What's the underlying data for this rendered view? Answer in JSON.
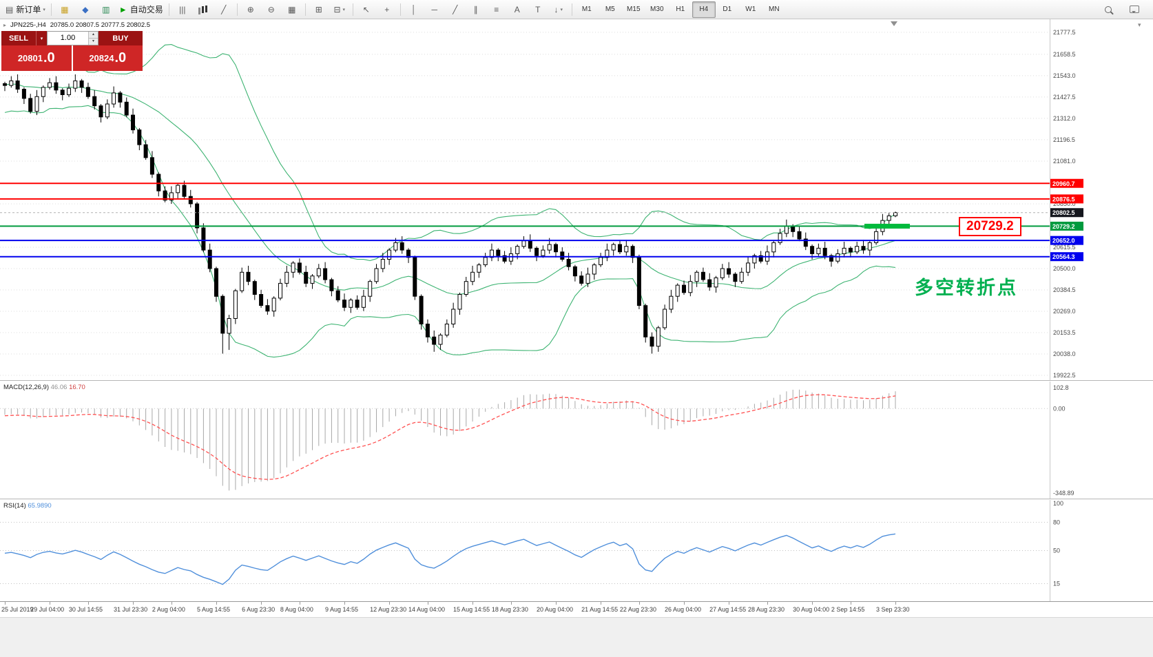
{
  "toolbar": {
    "groups": [
      {
        "items": [
          {
            "name": "new-order-button",
            "label": "新订单",
            "icon": "ticket",
            "dropdown": true
          }
        ]
      },
      {
        "items": [
          {
            "name": "market-watch-button",
            "icon": "market",
            "color": "#c9a227"
          },
          {
            "name": "navigator-button",
            "icon": "navigator",
            "color": "#3a6fc4"
          },
          {
            "name": "terminal-button",
            "icon": "terminal",
            "color": "#2e8b57"
          },
          {
            "name": "autotrading-button",
            "label": "自动交易",
            "icon": "play",
            "color": "#00a000"
          }
        ]
      },
      {
        "items": [
          {
            "name": "bar-chart-button",
            "icon": "bars"
          },
          {
            "name": "candle-chart-button",
            "icon": "candles"
          },
          {
            "name": "line-chart-button",
            "icon": "line"
          }
        ]
      },
      {
        "items": [
          {
            "name": "zoom-in-button",
            "icon": "zoomin"
          },
          {
            "name": "zoom-out-button",
            "icon": "zoomout"
          },
          {
            "name": "grid-button",
            "icon": "grid"
          }
        ]
      },
      {
        "items": [
          {
            "name": "tile-windows-button",
            "icon": "tile"
          },
          {
            "name": "new-chart-button",
            "icon": "win",
            "dropdown": true
          }
        ]
      },
      {
        "items": [
          {
            "name": "cursor-button",
            "icon": "cursor"
          },
          {
            "name": "crosshair-button",
            "icon": "cross"
          }
        ]
      },
      {
        "items": [
          {
            "name": "vertical-line-button",
            "icon": "vline"
          },
          {
            "name": "horizontal-line-button",
            "icon": "hline"
          },
          {
            "name": "trendline-button",
            "icon": "trend"
          },
          {
            "name": "channel-button",
            "icon": "channel"
          },
          {
            "name": "fibonacci-button",
            "icon": "fibo"
          },
          {
            "name": "text-button",
            "icon": "text"
          },
          {
            "name": "text-label-button",
            "icon": "label"
          },
          {
            "name": "arrows-button",
            "icon": "arrows",
            "dropdown": true
          }
        ]
      },
      {
        "items": [
          {
            "name": "timeframe-m1-button",
            "label": "M1",
            "tf": true
          },
          {
            "name": "timeframe-m5-button",
            "label": "M5",
            "tf": true
          },
          {
            "name": "timeframe-m15-button",
            "label": "M15",
            "tf": true
          },
          {
            "name": "timeframe-m30-button",
            "label": "M30",
            "tf": true
          },
          {
            "name": "timeframe-h1-button",
            "label": "H1",
            "tf": true
          },
          {
            "name": "timeframe-h4-button",
            "label": "H4",
            "tf": true,
            "active": true
          },
          {
            "name": "timeframe-d1-button",
            "label": "D1",
            "tf": true
          },
          {
            "name": "timeframe-w1-button",
            "label": "W1",
            "tf": true
          },
          {
            "name": "timeframe-mn-button",
            "label": "MN",
            "tf": true
          }
        ]
      }
    ],
    "right_items": [
      {
        "name": "search-button",
        "icon": "search"
      },
      {
        "name": "chat-button",
        "icon": "chat"
      }
    ]
  },
  "symbol_info": {
    "title": "JPN225-,H4",
    "ohlc": "20785.0 20807.5 20777.5 20802.5"
  },
  "trade_panel": {
    "sell_label": "SELL",
    "buy_label": "BUY",
    "volume": "1.00",
    "sell_price": "20801.0",
    "buy_price": "20824.0"
  },
  "annotations": {
    "price_label": "20729.2",
    "cn_text": "多空转折点"
  },
  "chart_data": {
    "type": "candlestick",
    "symbol": "JPN225-",
    "timeframe": "H4",
    "current_price": 20802.5,
    "price_axis": {
      "top": 21848.0,
      "bottom": 19896.5,
      "labels": [
        {
          "text": "21777.5",
          "p": 21777.5
        },
        {
          "text": "21658.5",
          "p": 21658.5
        },
        {
          "text": "21543.0",
          "p": 21543.0
        },
        {
          "text": "21427.5",
          "p": 21427.5
        },
        {
          "text": "21312.0",
          "p": 21312.0
        },
        {
          "text": "21196.5",
          "p": 21196.5
        },
        {
          "text": "21081.0",
          "p": 21081.0
        },
        {
          "text": "20850.0",
          "p": 20850.0
        },
        {
          "text": "20615.5",
          "p": 20615.5
        },
        {
          "text": "20500.0",
          "p": 20500.0
        },
        {
          "text": "20384.5",
          "p": 20384.5
        },
        {
          "text": "20269.0",
          "p": 20269.0
        },
        {
          "text": "20153.5",
          "p": 20153.5
        },
        {
          "text": "20038.0",
          "p": 20038.0
        },
        {
          "text": "19922.5",
          "p": 19922.5
        }
      ]
    },
    "hlines": [
      {
        "price": 20960.7,
        "color": "#ff0000"
      },
      {
        "price": 20876.5,
        "color": "#ff0000"
      },
      {
        "price": 20729.2,
        "color": "#009a3e",
        "thick_segment": true
      },
      {
        "price": 20652.0,
        "color": "#0000ee"
      },
      {
        "price": 20564.3,
        "color": "#0000ee"
      }
    ],
    "x_labels": [
      "25 Jul 2019",
      "29 Jul 04:00",
      "30 Jul 14:55",
      "31 Jul 23:30",
      "2 Aug 04:00",
      "5 Aug 14:55",
      "6 Aug 23:30",
      "8 Aug 04:00",
      "9 Aug 14:55",
      "12 Aug 23:30",
      "14 Aug 04:00",
      "15 Aug 14:55",
      "18 Aug 23:30",
      "20 Aug 04:00",
      "21 Aug 14:55",
      "22 Aug 23:30",
      "26 Aug 04:00",
      "27 Aug 14:55",
      "28 Aug 23:30",
      "30 Aug 04:00",
      "2 Sep 14:55",
      "3 Sep 23:30"
    ],
    "warmup_closes": [
      21620,
      21420,
      21520,
      21650,
      21380,
      21480,
      21580,
      21350,
      21450,
      21560,
      21400,
      21550,
      21470,
      21600,
      21520,
      21430,
      21560,
      21500,
      21460,
      21500
    ],
    "candles": [
      [
        21500,
        21510,
        21460,
        21490
      ],
      [
        21490,
        21540,
        21478,
        21515
      ],
      [
        21515,
        21550,
        21450,
        21470
      ],
      [
        21470,
        21480,
        21390,
        21420
      ],
      [
        21420,
        21445,
        21338,
        21350
      ],
      [
        21350,
        21465,
        21330,
        21430
      ],
      [
        21430,
        21490,
        21400,
        21480
      ],
      [
        21480,
        21530,
        21468,
        21505
      ],
      [
        21505,
        21540,
        21445,
        21465
      ],
      [
        21465,
        21475,
        21410,
        21440
      ],
      [
        21440,
        21500,
        21428,
        21475
      ],
      [
        21475,
        21550,
        21455,
        21515
      ],
      [
        21515,
        21525,
        21450,
        21480
      ],
      [
        21480,
        21505,
        21418,
        21430
      ],
      [
        21430,
        21465,
        21360,
        21380
      ],
      [
        21380,
        21390,
        21290,
        21320
      ],
      [
        21320,
        21415,
        21308,
        21390
      ],
      [
        21390,
        21485,
        21370,
        21450
      ],
      [
        21450,
        21460,
        21370,
        21400
      ],
      [
        21400,
        21425,
        21318,
        21330
      ],
      [
        21330,
        21365,
        21230,
        21250
      ],
      [
        21250,
        21260,
        21140,
        21170
      ],
      [
        21170,
        21195,
        21088,
        21100
      ],
      [
        21100,
        21135,
        20990,
        21010
      ],
      [
        21010,
        21020,
        20890,
        20920
      ],
      [
        20920,
        20945,
        20858,
        20870
      ],
      [
        20870,
        20945,
        20850,
        20910
      ],
      [
        20910,
        20960,
        20880,
        20950
      ],
      [
        20950,
        20975,
        20878,
        20890
      ],
      [
        20890,
        20925,
        20830,
        20850
      ],
      [
        20850,
        20860,
        20690,
        20720
      ],
      [
        20720,
        20745,
        20588,
        20600
      ],
      [
        20600,
        20635,
        20480,
        20500
      ],
      [
        20500,
        20510,
        20320,
        20350
      ],
      [
        20350,
        20360,
        20040,
        20150
      ],
      [
        20150,
        20250,
        20060,
        20230
      ],
      [
        20230,
        20390,
        20200,
        20380
      ],
      [
        20380,
        20505,
        20368,
        20480
      ],
      [
        20480,
        20515,
        20410,
        20430
      ],
      [
        20430,
        20440,
        20330,
        20360
      ],
      [
        20360,
        20385,
        20288,
        20300
      ],
      [
        20300,
        20335,
        20250,
        20270
      ],
      [
        20270,
        20350,
        20240,
        20340
      ],
      [
        20340,
        20445,
        20328,
        20420
      ],
      [
        20420,
        20515,
        20400,
        20480
      ],
      [
        20480,
        20540,
        20450,
        20530
      ],
      [
        20530,
        20555,
        20468,
        20480
      ],
      [
        20480,
        20515,
        20400,
        20420
      ],
      [
        20420,
        20470,
        20390,
        20460
      ],
      [
        20460,
        20525,
        20448,
        20500
      ],
      [
        20500,
        20535,
        20420,
        20440
      ],
      [
        20440,
        20450,
        20350,
        20380
      ],
      [
        20380,
        20405,
        20318,
        20330
      ],
      [
        20330,
        20365,
        20270,
        20290
      ],
      [
        20290,
        20340,
        20260,
        20330
      ],
      [
        20330,
        20355,
        20278,
        20290
      ],
      [
        20290,
        20385,
        20270,
        20350
      ],
      [
        20350,
        20440,
        20320,
        20430
      ],
      [
        20430,
        20525,
        20418,
        20500
      ],
      [
        20500,
        20585,
        20480,
        20550
      ],
      [
        20550,
        20610,
        20520,
        20600
      ],
      [
        20600,
        20665,
        20588,
        20640
      ],
      [
        20640,
        20675,
        20580,
        20600
      ],
      [
        20600,
        20610,
        20530,
        20560
      ],
      [
        20560,
        20570,
        20330,
        20350
      ],
      [
        20350,
        20360,
        20170,
        20200
      ],
      [
        20200,
        20225,
        20100,
        20130
      ],
      [
        20130,
        20165,
        20050,
        20090
      ],
      [
        20090,
        20150,
        20060,
        20140
      ],
      [
        20140,
        20225,
        20128,
        20200
      ],
      [
        20200,
        20315,
        20180,
        20280
      ],
      [
        20280,
        20370,
        20250,
        20360
      ],
      [
        20360,
        20455,
        20348,
        20430
      ],
      [
        20430,
        20515,
        20410,
        20480
      ],
      [
        20480,
        20530,
        20450,
        20520
      ],
      [
        20520,
        20585,
        20508,
        20560
      ],
      [
        20560,
        20635,
        20540,
        20600
      ],
      [
        20600,
        20610,
        20540,
        20570
      ],
      [
        20570,
        20595,
        20528,
        20540
      ],
      [
        20540,
        20615,
        20520,
        20580
      ],
      [
        20580,
        20630,
        20550,
        20620
      ],
      [
        20620,
        20675,
        20608,
        20650
      ],
      [
        20650,
        20685,
        20590,
        20610
      ],
      [
        20610,
        20620,
        20540,
        20570
      ],
      [
        20570,
        20625,
        20558,
        20600
      ],
      [
        20600,
        20665,
        20580,
        20630
      ],
      [
        20630,
        20640,
        20560,
        20590
      ],
      [
        20590,
        20615,
        20538,
        20550
      ],
      [
        20550,
        20585,
        20490,
        20510
      ],
      [
        20510,
        20520,
        20430,
        20460
      ],
      [
        20460,
        20485,
        20408,
        20420
      ],
      [
        20420,
        20505,
        20400,
        20470
      ],
      [
        20470,
        20530,
        20440,
        20520
      ],
      [
        20520,
        20585,
        20508,
        20560
      ],
      [
        20560,
        20635,
        20540,
        20600
      ],
      [
        20600,
        20640,
        20570,
        20630
      ],
      [
        20630,
        20655,
        20578,
        20590
      ],
      [
        20590,
        20655,
        20570,
        20620
      ],
      [
        20620,
        20630,
        20530,
        20560
      ],
      [
        20560,
        20575,
        20280,
        20300
      ],
      [
        20300,
        20310,
        20100,
        20130
      ],
      [
        20130,
        20155,
        20040,
        20080
      ],
      [
        20080,
        20190,
        20050,
        20180
      ],
      [
        20180,
        20305,
        20168,
        20280
      ],
      [
        20280,
        20385,
        20260,
        20350
      ],
      [
        20350,
        20420,
        20320,
        20410
      ],
      [
        20410,
        20435,
        20358,
        20370
      ],
      [
        20370,
        20465,
        20350,
        20430
      ],
      [
        20430,
        20490,
        20400,
        20480
      ],
      [
        20480,
        20505,
        20428,
        20440
      ],
      [
        20440,
        20475,
        20380,
        20400
      ],
      [
        20400,
        20460,
        20370,
        20450
      ],
      [
        20450,
        20525,
        20438,
        20500
      ],
      [
        20500,
        20535,
        20450,
        20470
      ],
      [
        20470,
        20480,
        20400,
        20430
      ],
      [
        20430,
        20505,
        20418,
        20480
      ],
      [
        20480,
        20565,
        20460,
        20530
      ],
      [
        20530,
        20580,
        20500,
        20570
      ],
      [
        20570,
        20595,
        20528,
        20540
      ],
      [
        20540,
        20625,
        20520,
        20590
      ],
      [
        20590,
        20650,
        20560,
        20640
      ],
      [
        20640,
        20715,
        20628,
        20690
      ],
      [
        20690,
        20765,
        20670,
        20730
      ],
      [
        20730,
        20740,
        20670,
        20700
      ],
      [
        20700,
        20725,
        20648,
        20660
      ],
      [
        20660,
        20695,
        20600,
        20620
      ],
      [
        20620,
        20630,
        20550,
        20580
      ],
      [
        20580,
        20635,
        20568,
        20610
      ],
      [
        20610,
        20645,
        20550,
        20570
      ],
      [
        20570,
        20580,
        20510,
        20540
      ],
      [
        20540,
        20605,
        20528,
        20580
      ],
      [
        20580,
        20645,
        20560,
        20610
      ],
      [
        20610,
        20620,
        20560,
        20590
      ],
      [
        20590,
        20645,
        20578,
        20620
      ],
      [
        20620,
        20655,
        20580,
        20600
      ],
      [
        20600,
        20650,
        20570,
        20640
      ],
      [
        20640,
        20725,
        20628,
        20700
      ],
      [
        20700,
        20795,
        20680,
        20760
      ],
      [
        20760,
        20800,
        20740,
        20785
      ],
      [
        20785,
        20807.5,
        20777.5,
        20802.5
      ]
    ],
    "indicators": {
      "bollinger": {
        "period": 20,
        "deviation": 2,
        "color": "#3CB371"
      },
      "macd": {
        "label": "MACD(12,26,9)",
        "value_main": "46.06",
        "value_signal": "16.70",
        "axis_top": "102.8",
        "axis_zero": "0.00",
        "axis_bottom": "-348.89"
      },
      "rsi": {
        "label": "RSI(14)",
        "value": "65.9890",
        "axis_labels": [
          {
            "text": "100",
            "v": 100
          },
          {
            "text": "80",
            "v": 80
          },
          {
            "text": "50",
            "v": 50
          },
          {
            "text": "15",
            "v": 15
          }
        ],
        "levels": [
          80,
          50,
          15
        ]
      }
    }
  }
}
